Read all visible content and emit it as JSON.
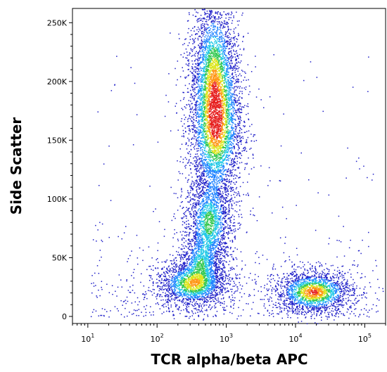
{
  "chart_data": {
    "type": "scatter",
    "subtype": "flow-cytometry-density-dot-plot",
    "xlabel": "TCR alpha/beta APC",
    "ylabel": "Side Scatter",
    "x_scale": "log",
    "xlim": [
      6,
      200000
    ],
    "ylim": [
      -6000,
      262144
    ],
    "x_ticks": [
      {
        "value": 10,
        "base": "10",
        "exp": "1"
      },
      {
        "value": 100,
        "base": "10",
        "exp": "2"
      },
      {
        "value": 1000,
        "base": "10",
        "exp": "3"
      },
      {
        "value": 10000,
        "base": "10",
        "exp": "4"
      },
      {
        "value": 100000,
        "base": "10",
        "exp": "5"
      }
    ],
    "y_ticks": [
      {
        "value": 0,
        "label": "0"
      },
      {
        "value": 50000,
        "label": "50K"
      },
      {
        "value": 100000,
        "label": "100K"
      },
      {
        "value": 150000,
        "label": "150K"
      },
      {
        "value": 200000,
        "label": "200K"
      },
      {
        "value": 250000,
        "label": "250K"
      }
    ],
    "grid": false,
    "legend": "none",
    "color_scale": [
      "#1e1ec8",
      "#1e82ff",
      "#1ec8e6",
      "#32c850",
      "#dce61e",
      "#ff9614",
      "#e61e1e"
    ],
    "populations": [
      {
        "x_center": 700,
        "x_spread_decades": 0.14,
        "y_center": 165000,
        "y_spread": 26000,
        "peak": 1.0
      },
      {
        "x_center": 650,
        "x_spread_decades": 0.12,
        "y_center": 210000,
        "y_spread": 25000,
        "peak": 0.55
      },
      {
        "x_center": 560,
        "x_spread_decades": 0.12,
        "y_center": 80000,
        "y_spread": 15000,
        "peak": 0.55
      },
      {
        "x_center": 420,
        "x_spread_decades": 0.11,
        "y_center": 45000,
        "y_spread": 10000,
        "peak": 0.45
      },
      {
        "x_center": 320,
        "x_spread_decades": 0.18,
        "y_center": 28000,
        "y_spread": 7000,
        "peak": 0.75
      },
      {
        "x_center": 18000,
        "x_spread_decades": 0.2,
        "y_center": 21000,
        "y_spread": 6500,
        "peak": 0.95
      }
    ]
  }
}
